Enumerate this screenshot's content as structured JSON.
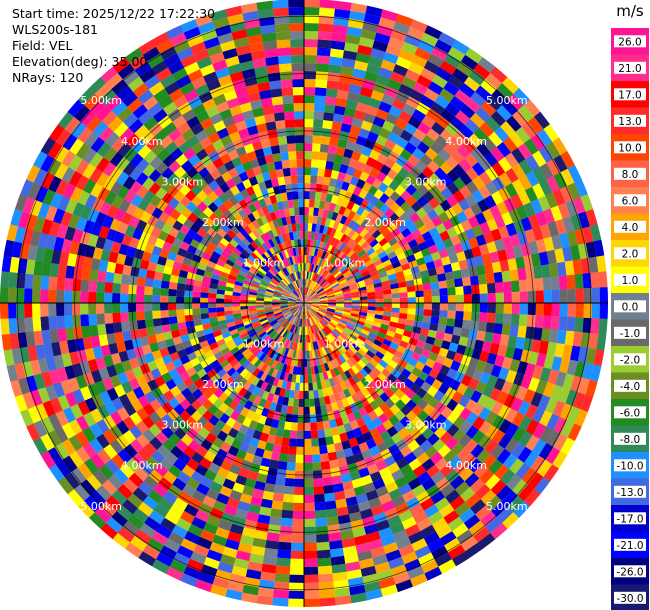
{
  "info": {
    "start_time": "Start time: 2025/12/22 17:22:30",
    "station": "WLS200s-181",
    "field": "Field: VEL",
    "elevation": "Elevation(deg): 35.00",
    "nrays": "NRays: 120"
  },
  "chart_data": {
    "type": "heatmap",
    "projection": "polar-ppi",
    "field": "VEL",
    "units": "m/s",
    "nrays": 120,
    "range_rings_km": [
      1.0,
      2.0,
      3.0,
      4.0,
      5.0
    ],
    "ring_labels": [
      "1.00km",
      "2.00km",
      "3.00km",
      "4.00km",
      "5.00km"
    ],
    "max_range_km": 5.3,
    "colorbar": {
      "unit_label": "m/s",
      "ticks": [
        "26.0",
        "21.0",
        "17.0",
        "13.0",
        "10.0",
        "8.0",
        "6.0",
        "4.0",
        "2.0",
        "1.0",
        "0.0",
        "-1.0",
        "-2.0",
        "-4.0",
        "-6.0",
        "-8.0",
        "-10.0",
        "-13.0",
        "-17.0",
        "-21.0",
        "-26.0",
        "-30.0"
      ],
      "colors": [
        "#ff1493",
        "#ff2d8e",
        "#ff0000",
        "#ff2b2b",
        "#ff4500",
        "#ff6347",
        "#ff7f50",
        "#ffa500",
        "#ffd700",
        "#ffff00",
        "#708090",
        "#696969",
        "#9acd32",
        "#6b8e23",
        "#228b22",
        "#2e8b57",
        "#1e90ff",
        "#4169e1",
        "#0000cd",
        "#0000ff",
        "#000080",
        "#191970"
      ]
    }
  }
}
